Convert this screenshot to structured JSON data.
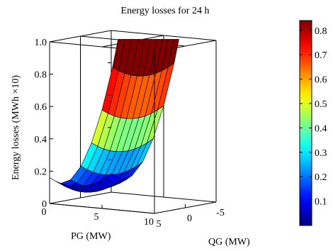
{
  "chart_data": {
    "type": "surface",
    "title": "Energy losses for 24 h",
    "xlabel": "PG (MW)",
    "ylabel": "QG (MW)",
    "zlabel": "Energy losses (MWh ×10)",
    "x": [
      0,
      1,
      2,
      3,
      4,
      5,
      6,
      7,
      8,
      9,
      10
    ],
    "y": [
      5,
      4,
      3,
      2,
      1,
      0,
      -1,
      -2,
      -3,
      -4,
      -5
    ],
    "z": [
      [
        0.159,
        0.129,
        0.159,
        0.249,
        0.399,
        0.609,
        0.879,
        1.209,
        1.599,
        2.049,
        2.559
      ],
      [
        0.131,
        0.101,
        0.131,
        0.221,
        0.371,
        0.581,
        0.851,
        1.181,
        1.571,
        2.021,
        2.531
      ],
      [
        0.108,
        0.078,
        0.108,
        0.198,
        0.348,
        0.558,
        0.828,
        1.158,
        1.548,
        1.998,
        2.508
      ],
      [
        0.09,
        0.06,
        0.09,
        0.18,
        0.33,
        0.54,
        0.81,
        1.14,
        1.53,
        1.98,
        2.49
      ],
      [
        0.078,
        0.048,
        0.078,
        0.168,
        0.318,
        0.528,
        0.798,
        1.128,
        1.518,
        1.968,
        2.478
      ],
      [
        0.071,
        0.041,
        0.071,
        0.161,
        0.311,
        0.521,
        0.791,
        1.121,
        1.511,
        1.961,
        2.471
      ],
      [
        0.069,
        0.039,
        0.069,
        0.159,
        0.309,
        0.519,
        0.789,
        1.119,
        1.509,
        1.959,
        2.469
      ],
      [
        0.073,
        0.043,
        0.073,
        0.163,
        0.313,
        0.523,
        0.793,
        1.123,
        1.513,
        1.963,
        2.473
      ],
      [
        0.082,
        0.052,
        0.082,
        0.172,
        0.322,
        0.532,
        0.802,
        1.132,
        1.522,
        1.972,
        2.482
      ],
      [
        0.096,
        0.066,
        0.096,
        0.186,
        0.336,
        0.546,
        0.816,
        1.146,
        1.536,
        1.986,
        2.496
      ],
      [
        0.116,
        0.086,
        0.116,
        0.206,
        0.356,
        0.566,
        0.836,
        1.166,
        1.556,
        2.006,
        2.516
      ]
    ],
    "xlim": [
      0,
      10
    ],
    "ylim": [
      5,
      -5
    ],
    "zlim": [
      0,
      1.0
    ],
    "xticks": [
      "0",
      "5",
      "10"
    ],
    "yticks": [
      "5",
      "0",
      "-5"
    ],
    "zticks": [
      "0",
      "0.2",
      "0.4",
      "0.6",
      "0.8",
      "1.0"
    ],
    "grid": true,
    "colormap": "jet",
    "colorbar": {
      "range": [
        0,
        0.84
      ],
      "ticks": [
        "0.1",
        "0.2",
        "0.3",
        "0.4",
        "0.5",
        "0.6",
        "0.7",
        "0.8"
      ],
      "placement": "right"
    }
  }
}
